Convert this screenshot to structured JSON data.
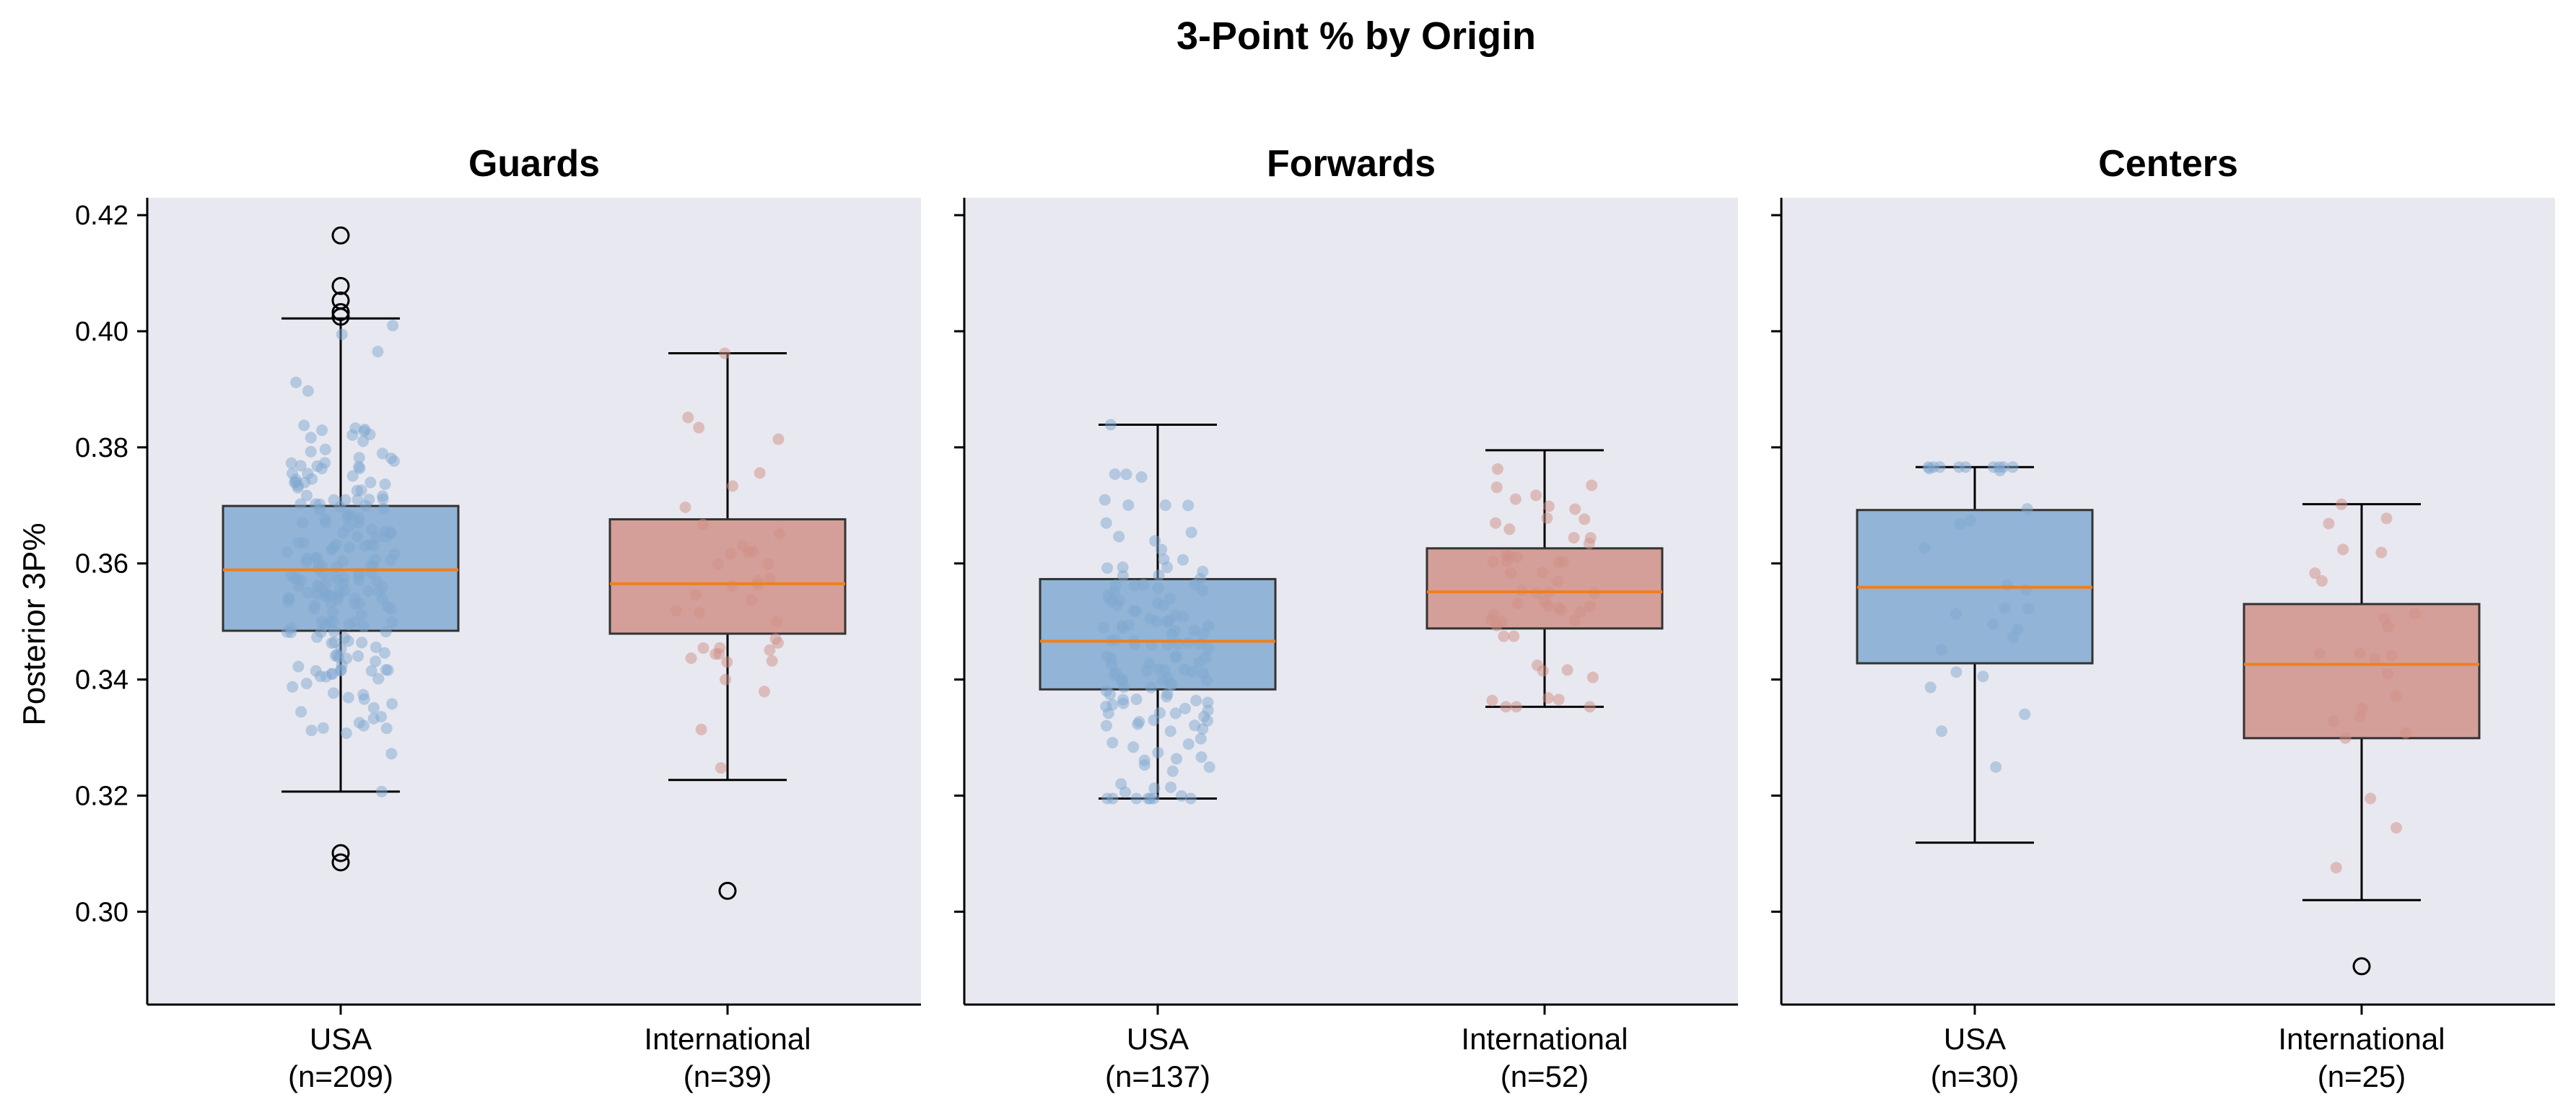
{
  "chart_data": {
    "type": "box",
    "title": "3-Point % by Origin",
    "ylabel": "Posterior 3P%",
    "ylim": [
      0.284,
      0.423
    ],
    "yticks": [
      0.3,
      0.32,
      0.34,
      0.36,
      0.38,
      0.4,
      0.42
    ],
    "ytick_labels": [
      "0.30",
      "0.32",
      "0.34",
      "0.36",
      "0.38",
      "0.40",
      "0.42"
    ],
    "grid": false,
    "colors": {
      "USA": "#7fa8cf",
      "International": "#d08f85",
      "median": "#f07f1e",
      "panel_bg": "#e8e8f0"
    },
    "panels": [
      {
        "title": "Guards",
        "groups": [
          {
            "name": "USA",
            "label_line1": "USA",
            "label_line2": "(n=209)",
            "n": 209,
            "whisker_low": 0.3207,
            "q1": 0.3484,
            "median": 0.3589,
            "q3": 0.3699,
            "whisker_high": 0.4022,
            "outliers": [
              0.4165,
              0.4078,
              0.4053,
              0.4033,
              0.4025,
              0.3101,
              0.3085
            ]
          },
          {
            "name": "International",
            "label_line1": "International",
            "label_line2": "(n=39)",
            "n": 39,
            "whisker_low": 0.3227,
            "q1": 0.3479,
            "median": 0.3565,
            "q3": 0.3676,
            "whisker_high": 0.3962,
            "outliers": [
              0.3036
            ]
          }
        ]
      },
      {
        "title": "Forwards",
        "groups": [
          {
            "name": "USA",
            "label_line1": "USA",
            "label_line2": "(n=137)",
            "n": 137,
            "whisker_low": 0.3195,
            "q1": 0.3383,
            "median": 0.3466,
            "q3": 0.3573,
            "whisker_high": 0.3839,
            "outliers": []
          },
          {
            "name": "International",
            "label_line1": "International",
            "label_line2": "(n=52)",
            "n": 52,
            "whisker_low": 0.3353,
            "q1": 0.3488,
            "median": 0.3551,
            "q3": 0.3626,
            "whisker_high": 0.3795,
            "outliers": []
          }
        ]
      },
      {
        "title": "Centers",
        "groups": [
          {
            "name": "USA",
            "label_line1": "USA",
            "label_line2": "(n=30)",
            "n": 30,
            "whisker_low": 0.3119,
            "q1": 0.3428,
            "median": 0.3559,
            "q3": 0.3692,
            "whisker_high": 0.3766,
            "outliers": []
          },
          {
            "name": "International",
            "label_line1": "International",
            "label_line2": "(n=25)",
            "n": 25,
            "whisker_low": 0.302,
            "q1": 0.3299,
            "median": 0.3426,
            "q3": 0.353,
            "whisker_high": 0.3702,
            "outliers": [
              0.2906
            ]
          }
        ]
      }
    ]
  }
}
